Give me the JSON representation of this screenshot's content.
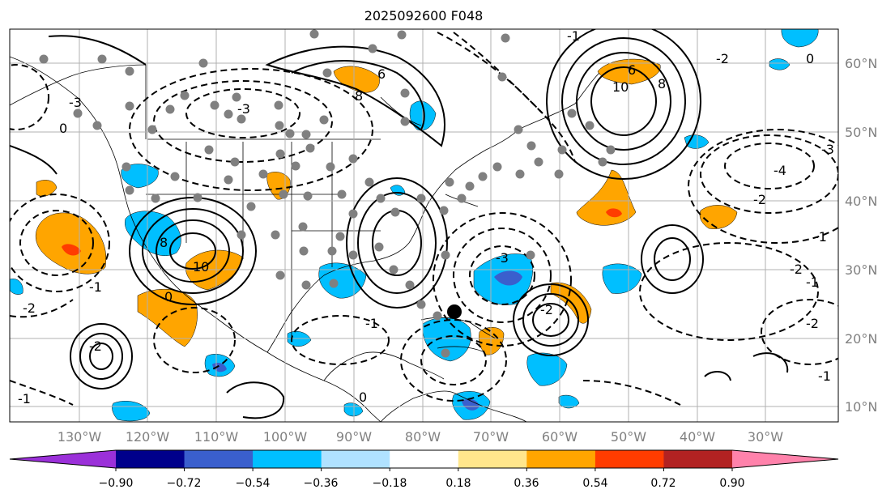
{
  "title": "2025092600 F048",
  "map": {
    "projection": "Mercator",
    "lon_range": [
      -142,
      -21
    ],
    "lat_range": [
      7,
      65
    ],
    "gridlines": true,
    "lon_labels": [
      "130°W",
      "120°W",
      "110°W",
      "100°W",
      "90°W",
      "80°W",
      "70°W",
      "60°W",
      "50°W",
      "40°W",
      "30°W"
    ],
    "lat_labels": [
      "10°N",
      "20°N",
      "30°N",
      "40°N",
      "50°N",
      "60°N"
    ],
    "contour_labels": [
      "-3",
      "6",
      "8",
      "6",
      "10",
      "8",
      "-4",
      "-2",
      "-1",
      "-2",
      "-1",
      "-2",
      "-3",
      "0",
      "-2",
      "-1",
      "0",
      "-2",
      "-1",
      "-1",
      "0",
      "-3",
      "0",
      "8",
      "10",
      "-1",
      "-2",
      "-1",
      "-3",
      "-2"
    ],
    "station_color": "#808080",
    "storm_marker_color": "#000000"
  },
  "colorbar": {
    "tick_labels": [
      "−0.90",
      "−0.72",
      "−0.54",
      "−0.36",
      "−0.18",
      "0.18",
      "0.36",
      "0.54",
      "0.72",
      "0.90"
    ],
    "colors": [
      "#9b30d9",
      "#00008b",
      "#3a5fcd",
      "#00bfff",
      "#b0e2ff",
      "#ffffff",
      "#ffe68c",
      "#ffa500",
      "#ff3c00",
      "#b22222",
      "#ff82ab"
    ],
    "extend": "both"
  },
  "chart_data": {
    "type": "map",
    "title": "2025092600 F048",
    "xlabel": "",
    "ylabel": "",
    "x_range": [
      -142,
      -21
    ],
    "y_range": [
      7,
      65
    ],
    "grid": true,
    "colorbar_range": [
      -0.9,
      0.9
    ],
    "colorbar_ticks": [
      -0.9,
      -0.72,
      -0.54,
      -0.36,
      -0.18,
      0.18,
      0.36,
      0.54,
      0.72,
      0.9
    ]
  }
}
